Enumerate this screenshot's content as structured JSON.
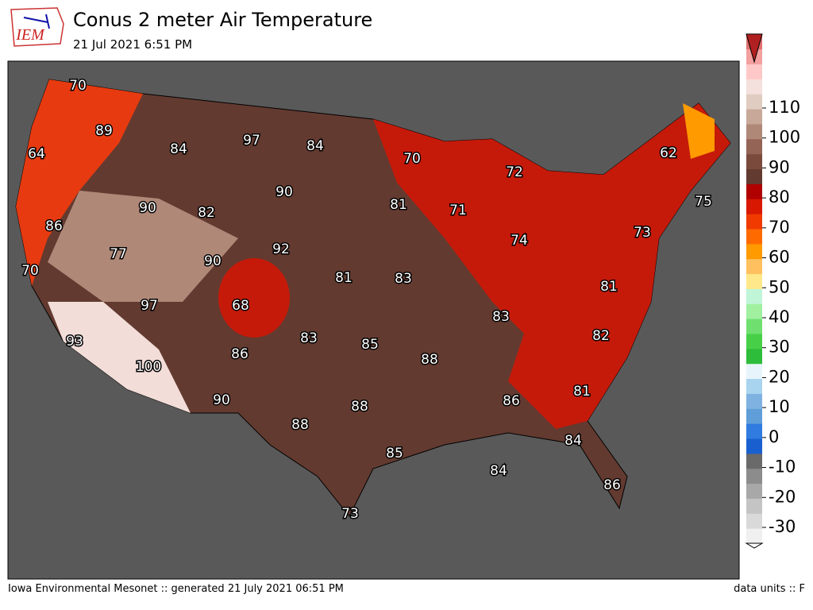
{
  "header": {
    "logo": "IEM",
    "title": "Conus 2 meter Air Temperature",
    "subtitle": "21 Jul 2021 6:51 PM"
  },
  "map": {
    "labels": [
      70,
      89,
      64,
      84,
      97,
      84,
      70,
      72,
      62,
      75,
      90,
      82,
      90,
      81,
      71,
      86,
      73,
      77,
      92,
      90,
      74,
      70,
      81,
      83,
      81,
      68,
      97,
      83,
      83,
      85,
      82,
      93,
      86,
      88,
      100,
      81,
      90,
      86,
      88,
      88,
      84,
      85,
      84,
      86,
      73
    ]
  },
  "colorbar": {
    "ticks": [
      -30,
      -20,
      -10,
      0,
      10,
      20,
      30,
      40,
      50,
      60,
      70,
      80,
      90,
      100,
      110
    ]
  },
  "footer": {
    "left": "Iowa Environmental Mesonet :: generated 21 July 2021 06:51 PM",
    "right": "data units :: F"
  }
}
